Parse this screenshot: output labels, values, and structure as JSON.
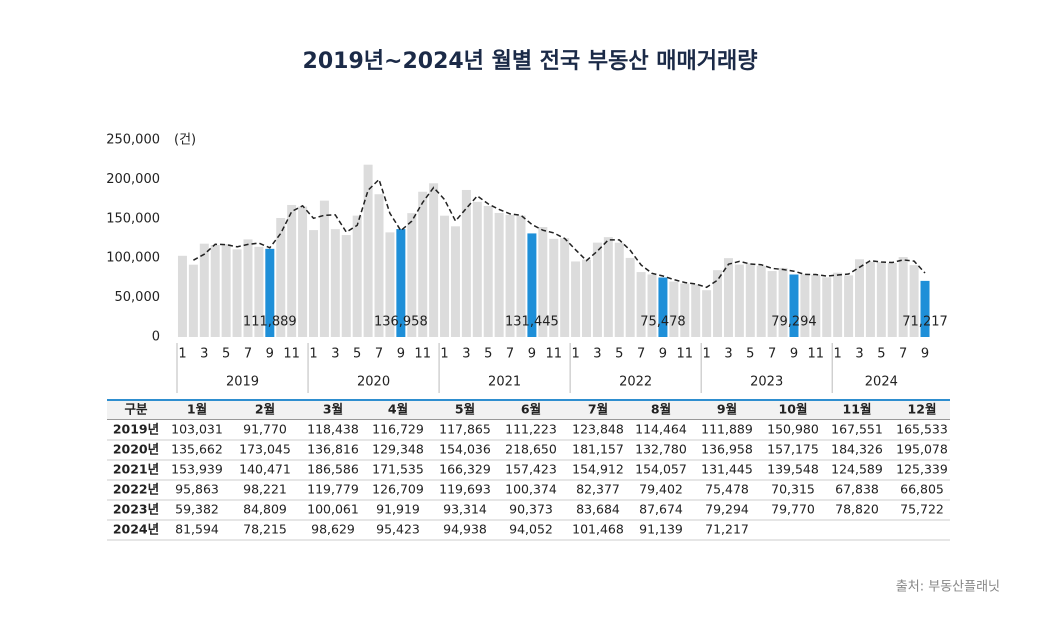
{
  "chart_data": {
    "type": "bar",
    "title": "2019년~2024년 월별 전국 부동산 매매거래량",
    "y_unit": "(건)",
    "categories": [
      "1",
      null,
      "3",
      null,
      "5",
      null,
      "7",
      null,
      "9",
      null,
      "11",
      null,
      "1",
      null,
      "3",
      null,
      "5",
      null,
      "7",
      null,
      "9",
      null,
      "11",
      null,
      "1",
      null,
      "3",
      null,
      "5",
      null,
      "7",
      null,
      "9",
      null,
      "11",
      null,
      "1",
      null,
      "3",
      null,
      "5",
      null,
      "7",
      null,
      "9",
      null,
      "11",
      null,
      "1",
      null,
      "3",
      null,
      "5",
      null,
      "7",
      null,
      "9",
      null,
      "11",
      null,
      "1",
      null,
      "3",
      null,
      "5",
      null,
      "7",
      null,
      "9"
    ],
    "years": [
      "2019",
      "2020",
      "2021",
      "2022",
      "2023",
      "2024"
    ],
    "series": [
      {
        "color": "#dcdcdc",
        "highlight_color": "#1e8fd8",
        "values": [
          103031,
          91770,
          118438,
          116729,
          117865,
          111223,
          123848,
          114464,
          111889,
          150980,
          167551,
          165533,
          135662,
          173045,
          136816,
          129348,
          154036,
          218650,
          181157,
          132780,
          136958,
          157175,
          184326,
          195078,
          153939,
          140471,
          186586,
          171535,
          166329,
          157423,
          154912,
          154057,
          131445,
          139548,
          124589,
          125339,
          95863,
          98221,
          119779,
          126709,
          119693,
          100374,
          82377,
          79402,
          75478,
          70315,
          67838,
          66805,
          59382,
          84809,
          100061,
          91919,
          93314,
          90373,
          83684,
          87674,
          79294,
          79770,
          78820,
          75722,
          81594,
          78215,
          98629,
          95423,
          94938,
          94052,
          101468,
          91139,
          71217
        ],
        "value_labels": [
          null,
          null,
          null,
          null,
          null,
          null,
          null,
          null,
          "111,889",
          null,
          null,
          null,
          null,
          null,
          null,
          null,
          null,
          null,
          null,
          null,
          "136,958",
          null,
          null,
          null,
          null,
          null,
          null,
          null,
          null,
          null,
          null,
          null,
          "131,445",
          null,
          null,
          null,
          null,
          null,
          null,
          null,
          null,
          null,
          null,
          null,
          "75,478",
          null,
          null,
          null,
          null,
          null,
          null,
          null,
          null,
          null,
          null,
          null,
          "79,294",
          null,
          null,
          null,
          null,
          null,
          null,
          null,
          null,
          null,
          null,
          null,
          "71,217"
        ]
      },
      {
        "type": "line",
        "color": "#222222",
        "dashed": true,
        "values": [
          null,
          97400,
          105100,
          117600,
          117300,
          114500,
          117500,
          119200,
          113200,
          131400,
          159300,
          166500,
          150600,
          154400,
          154900,
          133100,
          141700,
          186300,
          199900,
          157000,
          134900,
          147100,
          170800,
          189700,
          174500,
          147200,
          163500,
          179100,
          168900,
          161900,
          156200,
          154500,
          142800,
          135500,
          132100,
          125000,
          110600,
          97000,
          109000,
          123200,
          123200,
          110000,
          91400,
          80900,
          77400,
          72900,
          69100,
          67300,
          63100,
          72100,
          92400,
          96000,
          92600,
          91800,
          87000,
          85700,
          83500,
          79500,
          79300,
          77300,
          78700,
          79900,
          88400,
          97000,
          95200,
          94500,
          97800,
          96300,
          81200
        ]
      }
    ],
    "ylim": [
      0,
      250000
    ],
    "yticks": [
      0,
      {
        "value": 50000,
        "label": "50,000"
      },
      {
        "value": 100000,
        "label": "100,000"
      },
      {
        "value": 150000,
        "label": "150,000"
      },
      {
        "value": 200000,
        "label": "200,000"
      },
      {
        "value": 250000,
        "label": "250,000"
      }
    ]
  },
  "table": {
    "header": [
      "구분",
      "1월",
      "2월",
      "3월",
      "4월",
      "5월",
      "6월",
      "7월",
      "8월",
      "9월",
      "10월",
      "11월",
      "12월"
    ],
    "rows": [
      [
        "2019년",
        "103,031",
        "91,770",
        "118,438",
        "116,729",
        "117,865",
        "111,223",
        "123,848",
        "114,464",
        "111,889",
        "150,980",
        "167,551",
        "165,533"
      ],
      [
        "2020년",
        "135,662",
        "173,045",
        "136,816",
        "129,348",
        "154,036",
        "218,650",
        "181,157",
        "132,780",
        "136,958",
        "157,175",
        "184,326",
        "195,078"
      ],
      [
        "2021년",
        "153,939",
        "140,471",
        "186,586",
        "171,535",
        "166,329",
        "157,423",
        "154,912",
        "154,057",
        "131,445",
        "139,548",
        "124,589",
        "125,339"
      ],
      [
        "2022년",
        "95,863",
        "98,221",
        "119,779",
        "126,709",
        "119,693",
        "100,374",
        "82,377",
        "79,402",
        "75,478",
        "70,315",
        "67,838",
        "66,805"
      ],
      [
        "2023년",
        "59,382",
        "84,809",
        "100,061",
        "91,919",
        "93,314",
        "90,373",
        "83,684",
        "87,674",
        "79,294",
        "79,770",
        "78,820",
        "75,722"
      ],
      [
        "2024년",
        "81,594",
        "78,215",
        "98,629",
        "95,423",
        "94,938",
        "94,052",
        "101,468",
        "91,139",
        "71,217"
      ]
    ]
  },
  "source": "출처: 부동산플래닛"
}
